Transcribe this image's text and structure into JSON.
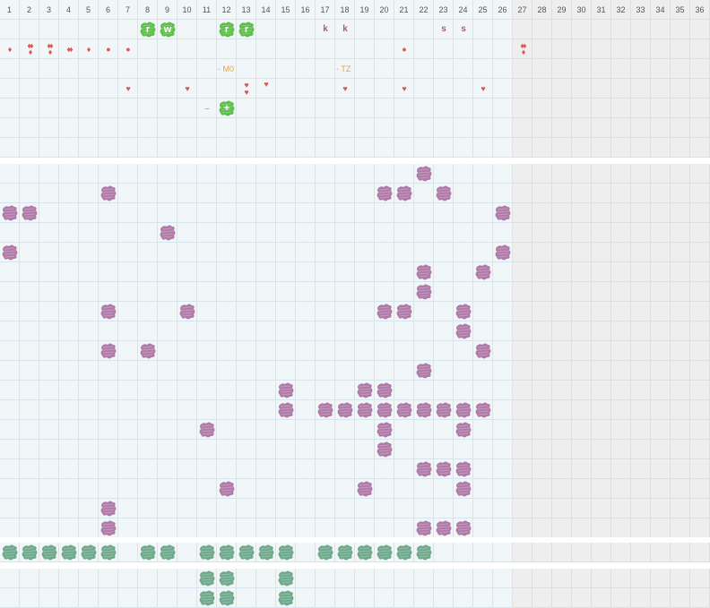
{
  "columns": [
    "1",
    "2",
    "3",
    "4",
    "5",
    "6",
    "7",
    "8",
    "9",
    "10",
    "11",
    "12",
    "13",
    "14",
    "15",
    "16",
    "17",
    "18",
    "19",
    "20",
    "21",
    "22",
    "23",
    "24",
    "25",
    "26",
    "27",
    "28",
    "29",
    "30",
    "31",
    "32",
    "33",
    "34",
    "35",
    "36"
  ],
  "active_columns": 26,
  "colors": {
    "purple_tile": "#b07aa8",
    "green_tile": "#5cbf4a",
    "teal_tile": "#6fa98c",
    "red_mark": "#e05656",
    "orange_label": "#e8a43c",
    "letter": "#a0607f",
    "grid_line": "#d6e4ee",
    "cell_bg": "#f1f6f9",
    "disabled_bg": "#eeeeee"
  },
  "top_section": {
    "green_tiles": [
      {
        "col": 8,
        "row": 1,
        "letter": "r"
      },
      {
        "col": 9,
        "row": 1,
        "letter": "w"
      },
      {
        "col": 12,
        "row": 1,
        "letter": "r"
      },
      {
        "col": 13,
        "row": 1,
        "letter": "r"
      },
      {
        "col": 12,
        "row": 5,
        "letter": "+"
      }
    ],
    "letters": [
      {
        "col": 17,
        "row": 1,
        "text": "k"
      },
      {
        "col": 18,
        "row": 1,
        "text": "k"
      },
      {
        "col": 23,
        "row": 1,
        "text": "s"
      },
      {
        "col": 24,
        "row": 1,
        "text": "s"
      }
    ],
    "marks": [
      {
        "col": 1,
        "row": 2,
        "icon": "drop-1"
      },
      {
        "col": 2,
        "row": 2,
        "icon": "drop-3"
      },
      {
        "col": 3,
        "row": 2,
        "icon": "drop-3"
      },
      {
        "col": 4,
        "row": 2,
        "icon": "drop-2"
      },
      {
        "col": 5,
        "row": 2,
        "icon": "drop-1"
      },
      {
        "col": 6,
        "row": 2,
        "icon": "dot"
      },
      {
        "col": 7,
        "row": 2,
        "icon": "dot"
      },
      {
        "col": 21,
        "row": 2,
        "icon": "dot"
      },
      {
        "col": 27,
        "row": 2,
        "icon": "drop-3"
      },
      {
        "col": 7,
        "row": 4,
        "icon": "heart"
      },
      {
        "col": 10,
        "row": 4,
        "icon": "heart"
      },
      {
        "col": 13,
        "row": 4,
        "icon": "heart-2"
      },
      {
        "col": 14,
        "row": 4,
        "icon": "heart-up"
      },
      {
        "col": 18,
        "row": 4,
        "icon": "heart"
      },
      {
        "col": 21,
        "row": 4,
        "icon": "heart"
      },
      {
        "col": 25,
        "row": 4,
        "icon": "heart"
      }
    ],
    "labels": [
      {
        "col": 12,
        "row": 3,
        "text": "- M0"
      },
      {
        "col": 18,
        "row": 3,
        "text": "- TZ"
      }
    ],
    "dash": {
      "col": 11,
      "row": 5,
      "text": "–"
    }
  },
  "middle_section": {
    "purple_tiles": [
      [
        22,
        0
      ],
      [
        6,
        1
      ],
      [
        20,
        1
      ],
      [
        21,
        1
      ],
      [
        23,
        1
      ],
      [
        1,
        2
      ],
      [
        2,
        2
      ],
      [
        26,
        2
      ],
      [
        9,
        3
      ],
      [
        1,
        4
      ],
      [
        26,
        4
      ],
      [
        22,
        5
      ],
      [
        25,
        5
      ],
      [
        22,
        6
      ],
      [
        6,
        7
      ],
      [
        10,
        7
      ],
      [
        20,
        7
      ],
      [
        21,
        7
      ],
      [
        24,
        7
      ],
      [
        24,
        8
      ],
      [
        6,
        9
      ],
      [
        8,
        9
      ],
      [
        25,
        9
      ],
      [
        22,
        10
      ],
      [
        15,
        11
      ],
      [
        19,
        11
      ],
      [
        20,
        11
      ],
      [
        15,
        12
      ],
      [
        17,
        12
      ],
      [
        18,
        12
      ],
      [
        19,
        12
      ],
      [
        20,
        12
      ],
      [
        21,
        12
      ],
      [
        22,
        12
      ],
      [
        23,
        12
      ],
      [
        24,
        12
      ],
      [
        25,
        12
      ],
      [
        11,
        13
      ],
      [
        20,
        13
      ],
      [
        24,
        13
      ],
      [
        20,
        14
      ],
      [
        22,
        15
      ],
      [
        23,
        15
      ],
      [
        24,
        15
      ],
      [
        12,
        16
      ],
      [
        19,
        16
      ],
      [
        24,
        16
      ],
      [
        6,
        17
      ],
      [
        6,
        18
      ],
      [
        22,
        18
      ],
      [
        23,
        18
      ],
      [
        24,
        18
      ]
    ]
  },
  "bottom_section": {
    "teal_row_1": [
      1,
      2,
      3,
      4,
      5,
      6,
      8,
      9,
      11,
      12,
      13,
      14,
      15,
      17,
      18,
      19,
      20,
      21,
      22
    ],
    "teal_row_2": [
      [
        11,
        0
      ],
      [
        12,
        0
      ],
      [
        15,
        0
      ],
      [
        11,
        1
      ],
      [
        12,
        1
      ],
      [
        15,
        1
      ]
    ]
  }
}
